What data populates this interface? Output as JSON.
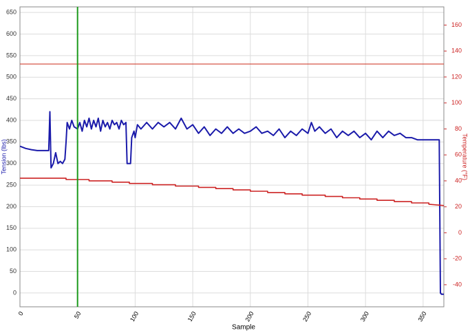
{
  "chart_data": {
    "type": "line",
    "x_label": "Sample",
    "y_label": "Tension (lbs)",
    "y2_label": "Temperature (°F)",
    "xlim": [
      0,
      368
    ],
    "xticks": [
      0,
      50,
      100,
      150,
      200,
      250,
      300,
      350
    ],
    "ylim": [
      -32,
      663
    ],
    "yticks": [
      0,
      50,
      100,
      150,
      200,
      250,
      300,
      350,
      400,
      450,
      500,
      550,
      600,
      650
    ],
    "y2lim": [
      -57,
      174
    ],
    "y2ticks": [
      -40,
      -20,
      0,
      20,
      40,
      60,
      80,
      100,
      120,
      140,
      160
    ],
    "grid": true,
    "marker_x": {
      "value": 50,
      "color": "#1a9a1a"
    },
    "threshold": {
      "value": 130,
      "axis": "y2",
      "color": "#d04030"
    },
    "series": [
      {
        "color": "#1a1aaa",
        "axis": "y",
        "x": [
          0,
          5,
          10,
          15,
          20,
          25,
          26,
          27,
          29,
          31,
          33,
          35,
          37,
          39,
          40,
          41,
          43,
          45,
          47,
          50,
          52,
          54,
          56,
          58,
          60,
          62,
          64,
          66,
          68,
          70,
          72,
          74,
          76,
          78,
          80,
          82,
          84,
          86,
          88,
          90,
          92,
          93,
          96,
          97,
          99,
          100,
          102,
          105,
          110,
          115,
          120,
          125,
          130,
          135,
          140,
          145,
          150,
          155,
          160,
          165,
          170,
          175,
          180,
          185,
          190,
          195,
          200,
          205,
          210,
          215,
          220,
          225,
          230,
          235,
          240,
          245,
          250,
          253,
          256,
          260,
          265,
          270,
          275,
          280,
          285,
          290,
          295,
          300,
          305,
          310,
          315,
          320,
          325,
          330,
          335,
          340,
          345,
          350,
          360,
          364,
          365,
          366,
          368
        ],
        "values": [
          340,
          335,
          332,
          330,
          330,
          330,
          420,
          290,
          300,
          325,
          300,
          305,
          300,
          310,
          350,
          395,
          380,
          400,
          385,
          380,
          395,
          375,
          400,
          385,
          405,
          380,
          400,
          385,
          405,
          375,
          400,
          385,
          395,
          380,
          400,
          390,
          395,
          380,
          400,
          390,
          395,
          300,
          300,
          360,
          375,
          360,
          390,
          380,
          395,
          380,
          395,
          385,
          395,
          380,
          405,
          380,
          390,
          370,
          385,
          365,
          380,
          370,
          385,
          370,
          380,
          370,
          375,
          385,
          370,
          375,
          365,
          380,
          360,
          375,
          365,
          380,
          370,
          395,
          375,
          385,
          370,
          380,
          360,
          375,
          365,
          375,
          360,
          370,
          355,
          375,
          360,
          375,
          365,
          370,
          360,
          360,
          355,
          355,
          355,
          355,
          0,
          -3,
          -3
        ]
      },
      {
        "color": "#cc2222",
        "axis": "y2",
        "x": [
          0,
          40,
          40,
          60,
          60,
          80,
          80,
          95,
          95,
          115,
          115,
          135,
          135,
          155,
          155,
          170,
          170,
          185,
          185,
          200,
          200,
          215,
          215,
          230,
          230,
          245,
          245,
          265,
          265,
          280,
          280,
          295,
          295,
          310,
          310,
          325,
          325,
          340,
          340,
          355,
          355,
          368
        ],
        "values": [
          42,
          42,
          41,
          41,
          40,
          40,
          39,
          39,
          38,
          38,
          37,
          37,
          36,
          36,
          35,
          35,
          34,
          34,
          33,
          33,
          32,
          32,
          31,
          31,
          30,
          30,
          29,
          29,
          28,
          28,
          27,
          27,
          26,
          26,
          25,
          25,
          24,
          24,
          23,
          23,
          22,
          21
        ]
      }
    ]
  }
}
